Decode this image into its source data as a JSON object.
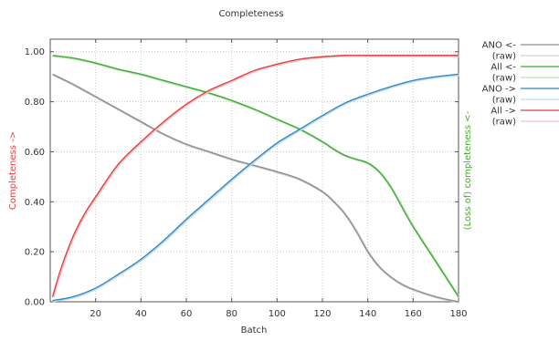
{
  "chart_data": {
    "type": "line",
    "title": "Completeness",
    "xlabel": "Batch",
    "ylabel_left": "Completeness ->",
    "ylabel_right": "(Loss of) completeness <-",
    "xlim": [
      0,
      180
    ],
    "ylim": [
      0,
      1.05
    ],
    "xticks": [
      20,
      40,
      60,
      80,
      100,
      120,
      140,
      160,
      180
    ],
    "xtick_labels": [
      "20",
      "40",
      "60",
      "80",
      "100",
      "120",
      "140",
      "160",
      "180"
    ],
    "yticks": [
      0,
      0.2,
      0.4,
      0.6,
      0.8,
      1.0
    ],
    "ytick_labels": [
      "0.00",
      "0.20",
      "0.40",
      "0.60",
      "0.80",
      "1.00"
    ],
    "grid": true,
    "legend_position": "outside-right",
    "colors": {
      "title": "#333333",
      "left_axis_label": "#e33b3b",
      "right_axis_label": "#4aa832",
      "grid": "#c8c8c8",
      "axes": "#555555"
    },
    "series": [
      {
        "name": "ANO <-",
        "raw_label": "(raw)",
        "color": "#8c8c8c",
        "raw_color": "#d0d0d0",
        "x": [
          1,
          10,
          20,
          30,
          40,
          50,
          60,
          70,
          80,
          90,
          100,
          110,
          120,
          125,
          130,
          135,
          140,
          145,
          150,
          155,
          160,
          170,
          180
        ],
        "y": [
          0.91,
          0.87,
          0.82,
          0.77,
          0.72,
          0.67,
          0.63,
          0.6,
          0.57,
          0.545,
          0.52,
          0.49,
          0.44,
          0.4,
          0.35,
          0.28,
          0.2,
          0.14,
          0.1,
          0.07,
          0.05,
          0.02,
          0.0
        ]
      },
      {
        "name": "All <-",
        "raw_label": "(raw)",
        "color": "#3aaa35",
        "raw_color": "#b8e0b0",
        "x": [
          1,
          10,
          20,
          30,
          40,
          50,
          60,
          70,
          80,
          90,
          100,
          110,
          120,
          125,
          130,
          135,
          140,
          145,
          150,
          155,
          160,
          170,
          180
        ],
        "y": [
          0.985,
          0.975,
          0.955,
          0.93,
          0.91,
          0.885,
          0.86,
          0.835,
          0.805,
          0.77,
          0.73,
          0.69,
          0.64,
          0.61,
          0.585,
          0.57,
          0.555,
          0.52,
          0.46,
          0.38,
          0.3,
          0.16,
          0.02
        ]
      },
      {
        "name": "ANO ->",
        "raw_label": "(raw)",
        "color": "#2e86c1",
        "raw_color": "#bcd9ee",
        "x": [
          1,
          10,
          20,
          30,
          40,
          50,
          60,
          70,
          80,
          90,
          100,
          110,
          120,
          130,
          140,
          150,
          160,
          170,
          180
        ],
        "y": [
          0.005,
          0.02,
          0.055,
          0.11,
          0.17,
          0.245,
          0.33,
          0.41,
          0.49,
          0.565,
          0.635,
          0.69,
          0.745,
          0.795,
          0.83,
          0.86,
          0.885,
          0.9,
          0.91
        ]
      },
      {
        "name": "All ->",
        "raw_label": "(raw)",
        "color": "#e03c3c",
        "raw_color": "#f3c4c4",
        "x": [
          1,
          5,
          10,
          15,
          20,
          30,
          40,
          50,
          60,
          70,
          80,
          90,
          100,
          110,
          120,
          130,
          140,
          160,
          180
        ],
        "y": [
          0.02,
          0.14,
          0.26,
          0.35,
          0.42,
          0.55,
          0.64,
          0.72,
          0.79,
          0.845,
          0.885,
          0.925,
          0.95,
          0.97,
          0.98,
          0.985,
          0.985,
          0.985,
          0.985
        ]
      }
    ]
  }
}
